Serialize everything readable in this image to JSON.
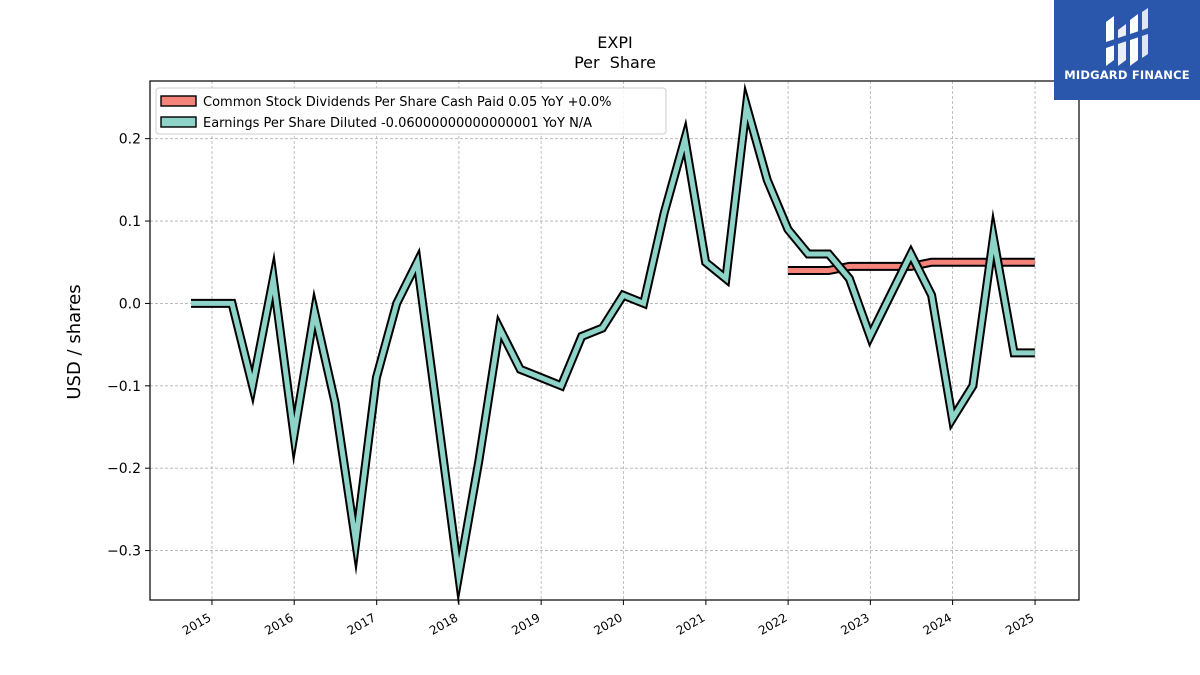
{
  "chart_data": {
    "type": "line",
    "title": "EXPI",
    "subtitle": "Per  Share",
    "ylabel": "USD / shares",
    "xlabel": "",
    "xlim": [
      "2014-04-01",
      "2025-07-15"
    ],
    "ylim": [
      -0.36,
      0.27
    ],
    "yticks": [
      0.2,
      0.1,
      0.0,
      -0.1,
      -0.2,
      -0.3
    ],
    "ytick_labels": [
      "0.2",
      "0.1",
      "0.0",
      "−0.1",
      "−0.2",
      "−0.3"
    ],
    "xticks": [
      "2015-01-01",
      "2016-01-01",
      "2017-01-01",
      "2018-01-01",
      "2019-01-01",
      "2020-01-01",
      "2021-01-01",
      "2022-01-01",
      "2023-01-01",
      "2024-01-01",
      "2025-01-01"
    ],
    "xtick_labels": [
      "2015",
      "2016",
      "2017",
      "2018",
      "2019",
      "2020",
      "2021",
      "2022",
      "2023",
      "2024",
      "2025"
    ],
    "grid": true,
    "legend_position": "top-left",
    "series": [
      {
        "name": "Common Stock Dividends Per Share Cash Paid  0.05 YoY +0.0%",
        "color": "#f4837a",
        "x": [
          "2021-12-31",
          "2022-03-31",
          "2022-06-30",
          "2022-09-30",
          "2022-12-31",
          "2023-03-31",
          "2023-06-30",
          "2023-09-30",
          "2023-12-31",
          "2024-03-31",
          "2024-06-30",
          "2024-09-30",
          "2024-12-31"
        ],
        "y": [
          0.04,
          0.04,
          0.04,
          0.045,
          0.045,
          0.045,
          0.045,
          0.05,
          0.05,
          0.05,
          0.05,
          0.05,
          0.05
        ]
      },
      {
        "name": "Earnings Per Share Diluted  -0.06000000000000001 YoY N/A",
        "color": "#8dd3c7",
        "x": [
          "2014-09-30",
          "2014-12-31",
          "2015-03-31",
          "2015-06-30",
          "2015-09-30",
          "2015-12-31",
          "2016-03-31",
          "2016-06-30",
          "2016-09-30",
          "2016-12-31",
          "2017-03-31",
          "2017-06-30",
          "2017-09-30",
          "2017-12-31",
          "2018-03-31",
          "2018-06-30",
          "2018-09-30",
          "2018-12-31",
          "2019-03-31",
          "2019-06-30",
          "2019-09-30",
          "2019-12-31",
          "2020-03-31",
          "2020-06-30",
          "2020-09-30",
          "2020-12-31",
          "2021-03-31",
          "2021-06-30",
          "2021-09-30",
          "2021-12-31",
          "2022-03-31",
          "2022-06-30",
          "2022-09-30",
          "2022-12-31",
          "2023-03-31",
          "2023-06-30",
          "2023-09-30",
          "2023-12-31",
          "2024-03-31",
          "2024-06-30",
          "2024-09-30",
          "2024-12-31"
        ],
        "y": [
          0.0,
          0.0,
          0.0,
          -0.1,
          0.03,
          -0.16,
          -0.01,
          -0.12,
          -0.29,
          -0.09,
          0.0,
          0.05,
          -0.14,
          -0.33,
          -0.19,
          -0.03,
          -0.08,
          -0.09,
          -0.1,
          -0.04,
          -0.03,
          0.01,
          0.0,
          0.11,
          0.2,
          0.05,
          0.03,
          0.24,
          0.15,
          0.09,
          0.06,
          0.06,
          0.03,
          -0.04,
          0.01,
          0.06,
          0.01,
          -0.14,
          -0.1,
          0.08,
          -0.06,
          -0.06
        ]
      }
    ]
  },
  "logo": {
    "text": "MIDGARD FINANCE"
  }
}
